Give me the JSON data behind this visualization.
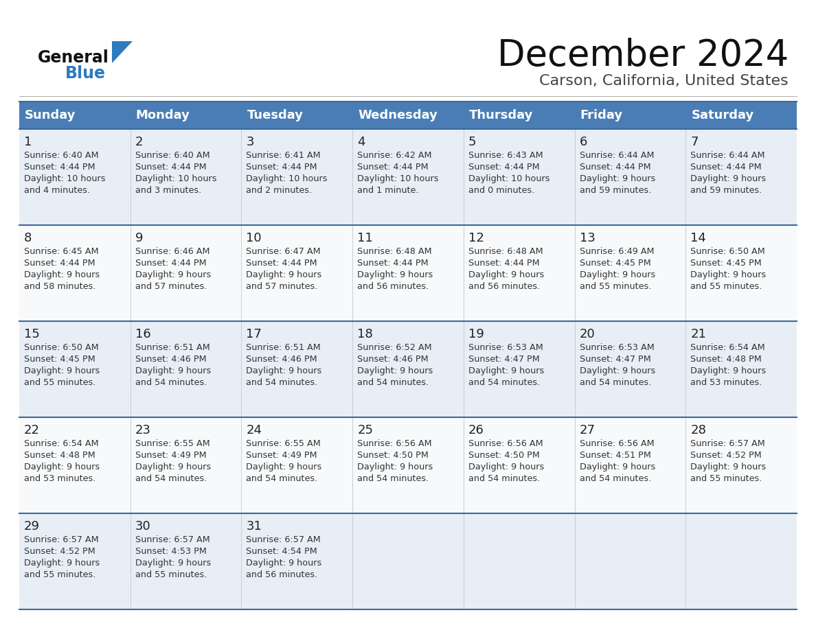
{
  "title": "December 2024",
  "subtitle": "Carson, California, United States",
  "days_of_week": [
    "Sunday",
    "Monday",
    "Tuesday",
    "Wednesday",
    "Thursday",
    "Friday",
    "Saturday"
  ],
  "header_bg": "#4a7db5",
  "header_text": "#ffffff",
  "row_bg_odd": "#e8eef5",
  "row_bg_even": "#f7f9fb",
  "day_num_color": "#222222",
  "cell_text_color": "#333333",
  "border_color": "#3a6a9a",
  "title_color": "#111111",
  "subtitle_color": "#444444",
  "logo_general_color": "#111111",
  "logo_blue_color": "#2e7abf",
  "calendar_data": [
    [
      {
        "day": 1,
        "sunrise": "6:40 AM",
        "sunset": "4:44 PM",
        "daylight_l1": "Daylight: 10 hours",
        "daylight_l2": "and 4 minutes."
      },
      {
        "day": 2,
        "sunrise": "6:40 AM",
        "sunset": "4:44 PM",
        "daylight_l1": "Daylight: 10 hours",
        "daylight_l2": "and 3 minutes."
      },
      {
        "day": 3,
        "sunrise": "6:41 AM",
        "sunset": "4:44 PM",
        "daylight_l1": "Daylight: 10 hours",
        "daylight_l2": "and 2 minutes."
      },
      {
        "day": 4,
        "sunrise": "6:42 AM",
        "sunset": "4:44 PM",
        "daylight_l1": "Daylight: 10 hours",
        "daylight_l2": "and 1 minute."
      },
      {
        "day": 5,
        "sunrise": "6:43 AM",
        "sunset": "4:44 PM",
        "daylight_l1": "Daylight: 10 hours",
        "daylight_l2": "and 0 minutes."
      },
      {
        "day": 6,
        "sunrise": "6:44 AM",
        "sunset": "4:44 PM",
        "daylight_l1": "Daylight: 9 hours",
        "daylight_l2": "and 59 minutes."
      },
      {
        "day": 7,
        "sunrise": "6:44 AM",
        "sunset": "4:44 PM",
        "daylight_l1": "Daylight: 9 hours",
        "daylight_l2": "and 59 minutes."
      }
    ],
    [
      {
        "day": 8,
        "sunrise": "6:45 AM",
        "sunset": "4:44 PM",
        "daylight_l1": "Daylight: 9 hours",
        "daylight_l2": "and 58 minutes."
      },
      {
        "day": 9,
        "sunrise": "6:46 AM",
        "sunset": "4:44 PM",
        "daylight_l1": "Daylight: 9 hours",
        "daylight_l2": "and 57 minutes."
      },
      {
        "day": 10,
        "sunrise": "6:47 AM",
        "sunset": "4:44 PM",
        "daylight_l1": "Daylight: 9 hours",
        "daylight_l2": "and 57 minutes."
      },
      {
        "day": 11,
        "sunrise": "6:48 AM",
        "sunset": "4:44 PM",
        "daylight_l1": "Daylight: 9 hours",
        "daylight_l2": "and 56 minutes."
      },
      {
        "day": 12,
        "sunrise": "6:48 AM",
        "sunset": "4:44 PM",
        "daylight_l1": "Daylight: 9 hours",
        "daylight_l2": "and 56 minutes."
      },
      {
        "day": 13,
        "sunrise": "6:49 AM",
        "sunset": "4:45 PM",
        "daylight_l1": "Daylight: 9 hours",
        "daylight_l2": "and 55 minutes."
      },
      {
        "day": 14,
        "sunrise": "6:50 AM",
        "sunset": "4:45 PM",
        "daylight_l1": "Daylight: 9 hours",
        "daylight_l2": "and 55 minutes."
      }
    ],
    [
      {
        "day": 15,
        "sunrise": "6:50 AM",
        "sunset": "4:45 PM",
        "daylight_l1": "Daylight: 9 hours",
        "daylight_l2": "and 55 minutes."
      },
      {
        "day": 16,
        "sunrise": "6:51 AM",
        "sunset": "4:46 PM",
        "daylight_l1": "Daylight: 9 hours",
        "daylight_l2": "and 54 minutes."
      },
      {
        "day": 17,
        "sunrise": "6:51 AM",
        "sunset": "4:46 PM",
        "daylight_l1": "Daylight: 9 hours",
        "daylight_l2": "and 54 minutes."
      },
      {
        "day": 18,
        "sunrise": "6:52 AM",
        "sunset": "4:46 PM",
        "daylight_l1": "Daylight: 9 hours",
        "daylight_l2": "and 54 minutes."
      },
      {
        "day": 19,
        "sunrise": "6:53 AM",
        "sunset": "4:47 PM",
        "daylight_l1": "Daylight: 9 hours",
        "daylight_l2": "and 54 minutes."
      },
      {
        "day": 20,
        "sunrise": "6:53 AM",
        "sunset": "4:47 PM",
        "daylight_l1": "Daylight: 9 hours",
        "daylight_l2": "and 54 minutes."
      },
      {
        "day": 21,
        "sunrise": "6:54 AM",
        "sunset": "4:48 PM",
        "daylight_l1": "Daylight: 9 hours",
        "daylight_l2": "and 53 minutes."
      }
    ],
    [
      {
        "day": 22,
        "sunrise": "6:54 AM",
        "sunset": "4:48 PM",
        "daylight_l1": "Daylight: 9 hours",
        "daylight_l2": "and 53 minutes."
      },
      {
        "day": 23,
        "sunrise": "6:55 AM",
        "sunset": "4:49 PM",
        "daylight_l1": "Daylight: 9 hours",
        "daylight_l2": "and 54 minutes."
      },
      {
        "day": 24,
        "sunrise": "6:55 AM",
        "sunset": "4:49 PM",
        "daylight_l1": "Daylight: 9 hours",
        "daylight_l2": "and 54 minutes."
      },
      {
        "day": 25,
        "sunrise": "6:56 AM",
        "sunset": "4:50 PM",
        "daylight_l1": "Daylight: 9 hours",
        "daylight_l2": "and 54 minutes."
      },
      {
        "day": 26,
        "sunrise": "6:56 AM",
        "sunset": "4:50 PM",
        "daylight_l1": "Daylight: 9 hours",
        "daylight_l2": "and 54 minutes."
      },
      {
        "day": 27,
        "sunrise": "6:56 AM",
        "sunset": "4:51 PM",
        "daylight_l1": "Daylight: 9 hours",
        "daylight_l2": "and 54 minutes."
      },
      {
        "day": 28,
        "sunrise": "6:57 AM",
        "sunset": "4:52 PM",
        "daylight_l1": "Daylight: 9 hours",
        "daylight_l2": "and 55 minutes."
      }
    ],
    [
      {
        "day": 29,
        "sunrise": "6:57 AM",
        "sunset": "4:52 PM",
        "daylight_l1": "Daylight: 9 hours",
        "daylight_l2": "and 55 minutes."
      },
      {
        "day": 30,
        "sunrise": "6:57 AM",
        "sunset": "4:53 PM",
        "daylight_l1": "Daylight: 9 hours",
        "daylight_l2": "and 55 minutes."
      },
      {
        "day": 31,
        "sunrise": "6:57 AM",
        "sunset": "4:54 PM",
        "daylight_l1": "Daylight: 9 hours",
        "daylight_l2": "and 56 minutes."
      },
      null,
      null,
      null,
      null
    ]
  ]
}
